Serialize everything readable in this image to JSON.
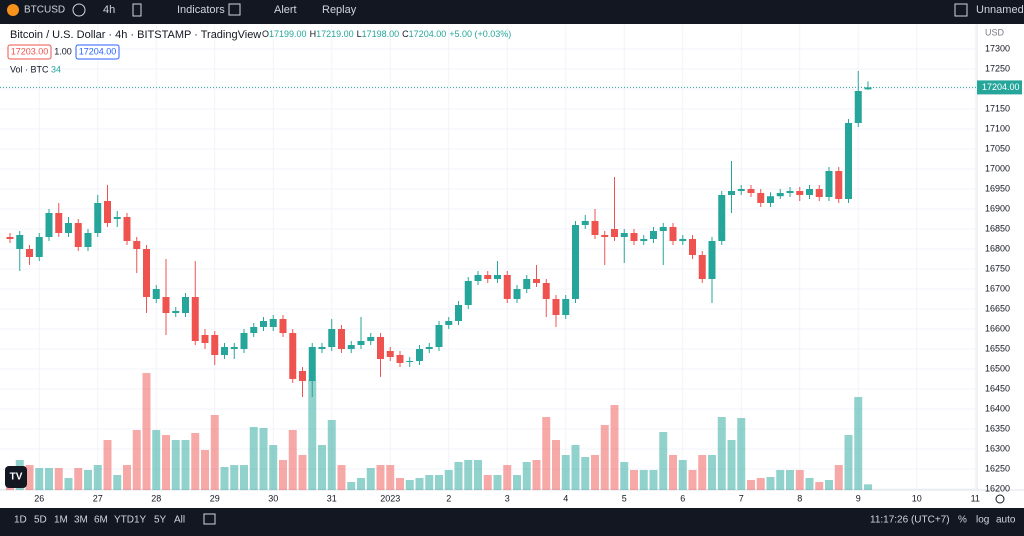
{
  "toolbar": {
    "symbol": "BTCUSD",
    "interval": "4h",
    "indicators": "Indicators",
    "alert": "Alert",
    "replay": "Replay",
    "layout": "Unnamed"
  },
  "legend": {
    "title": "Bitcoin / U.S. Dollar · 4h · BITSTAMP · TradingView",
    "o_label": "O",
    "o": "17199.00",
    "h_label": "H",
    "h": "17219.00",
    "l_label": "L",
    "l": "17198.00",
    "c_label": "C",
    "c": "17204.00",
    "change": "+5.00 (+0.03%)",
    "bid": "17203.00",
    "spread": "1.00",
    "ask": "17204.00",
    "vol_label": "Vol · BTC"
  },
  "chart_data": {
    "type": "candlestick",
    "currency": "USD",
    "last_price_label": "17204.00",
    "up_color": "#26a69a",
    "down_color": "#ef5350",
    "ylim": [
      16172.5,
      17360
    ],
    "yticks": [
      16200,
      16250,
      16300,
      16350,
      16400,
      16450,
      16500,
      16550,
      16600,
      16650,
      16700,
      16750,
      16800,
      16850,
      16900,
      16950,
      17000,
      17050,
      17100,
      17150,
      17200,
      17250,
      17300
    ],
    "x_labels": [
      "26",
      "27",
      "28",
      "29",
      "30",
      "31",
      "2023",
      "2",
      "3",
      "4",
      "5",
      "6",
      "7",
      "8",
      "9",
      "10",
      "11"
    ],
    "open": [
      16830,
      16800,
      16800,
      16780,
      16830,
      16890,
      16840,
      16865,
      16805,
      16840,
      16920,
      16875,
      16880,
      16820,
      16800,
      16675,
      16680,
      16640,
      16640,
      16680,
      16585,
      16585,
      16535,
      16550,
      16550,
      16590,
      16605,
      16605,
      16625,
      16590,
      16495,
      16470,
      16550,
      16555,
      16600,
      16550,
      16560,
      16570,
      16580,
      16545,
      16535,
      16520,
      16520,
      16550,
      16555,
      16610,
      16620,
      16660,
      16720,
      16735,
      16725,
      16735,
      16675,
      16700,
      16725,
      16715,
      16675,
      16635,
      16675,
      16860,
      16870,
      16835,
      16850,
      16830,
      16840,
      16820,
      16825,
      16845,
      16855,
      16820,
      16825,
      16785,
      16725,
      16820,
      16935,
      16945,
      16950,
      16940,
      16915,
      16932,
      16940,
      16945,
      16935,
      16950,
      16930,
      16995,
      16925,
      17115,
      17199
    ],
    "close": [
      16825,
      16835,
      16780,
      16830,
      16890,
      16840,
      16865,
      16805,
      16840,
      16915,
      16865,
      16880,
      16820,
      16800,
      16680,
      16700,
      16640,
      16645,
      16680,
      16570,
      16565,
      16535,
      16555,
      16555,
      16590,
      16605,
      16620,
      16625,
      16590,
      16475,
      16470,
      16555,
      16555,
      16600,
      16550,
      16560,
      16570,
      16580,
      16525,
      16530,
      16515,
      16520,
      16550,
      16555,
      16610,
      16620,
      16660,
      16720,
      16735,
      16725,
      16735,
      16675,
      16700,
      16725,
      16715,
      16675,
      16635,
      16675,
      16860,
      16870,
      16835,
      16830,
      16830,
      16840,
      16820,
      16825,
      16845,
      16855,
      16820,
      16825,
      16785,
      16725,
      16820,
      16935,
      16945,
      16950,
      16940,
      16915,
      16932,
      16940,
      16945,
      16935,
      16950,
      16930,
      16995,
      16925,
      17115,
      17195,
      17204
    ],
    "high": [
      16840,
      16845,
      16810,
      16840,
      16900,
      16915,
      16880,
      16875,
      16850,
      16935,
      16960,
      16895,
      16890,
      16830,
      16810,
      16710,
      16775,
      16655,
      16690,
      16770,
      16600,
      16595,
      16565,
      16565,
      16600,
      16615,
      16630,
      16635,
      16635,
      16600,
      16505,
      16565,
      16565,
      16625,
      16610,
      16570,
      16630,
      16590,
      16590,
      16555,
      16545,
      16530,
      16560,
      16565,
      16620,
      16630,
      16670,
      16730,
      16745,
      16745,
      16770,
      16745,
      16710,
      16735,
      16760,
      16725,
      16685,
      16685,
      16870,
      16885,
      16900,
      16845,
      16980,
      16850,
      16850,
      16835,
      16855,
      16865,
      16865,
      16835,
      16835,
      16795,
      16830,
      16945,
      17020,
      16960,
      16960,
      16950,
      16942,
      16950,
      16955,
      16955,
      16960,
      16960,
      17005,
      17005,
      17125,
      17245,
      17219
    ],
    "low": [
      16815,
      16745,
      16760,
      16770,
      16820,
      16830,
      16830,
      16795,
      16795,
      16830,
      16855,
      16855,
      16810,
      16740,
      16640,
      16665,
      16585,
      16630,
      16630,
      16560,
      16550,
      16510,
      16525,
      16525,
      16540,
      16580,
      16595,
      16595,
      16580,
      16465,
      16430,
      16430,
      16540,
      16545,
      16540,
      16540,
      16550,
      16560,
      16480,
      16520,
      16505,
      16505,
      16510,
      16540,
      16545,
      16600,
      16610,
      16650,
      16710,
      16715,
      16715,
      16665,
      16665,
      16690,
      16705,
      16630,
      16605,
      16625,
      16665,
      16850,
      16825,
      16760,
      16820,
      16765,
      16810,
      16810,
      16815,
      16760,
      16810,
      16810,
      16775,
      16715,
      16665,
      16810,
      16890,
      16935,
      16930,
      16905,
      16905,
      16925,
      16930,
      16920,
      16925,
      16920,
      16920,
      16915,
      16915,
      17105,
      17198
    ],
    "volume": [
      42,
      180,
      150,
      132,
      132,
      132,
      72,
      132,
      120,
      150,
      300,
      90,
      150,
      360,
      702,
      360,
      330,
      300,
      300,
      342,
      240,
      450,
      138,
      150,
      150,
      378,
      372,
      270,
      180,
      360,
      210,
      660,
      270,
      420,
      150,
      48,
      72,
      132,
      150,
      150,
      72,
      60,
      72,
      90,
      90,
      120,
      168,
      180,
      180,
      90,
      90,
      150,
      90,
      168,
      180,
      438,
      300,
      210,
      270,
      198,
      210,
      390,
      510,
      168,
      120,
      120,
      120,
      348,
      210,
      180,
      120,
      210,
      210,
      438,
      300,
      432,
      60,
      72,
      78,
      120,
      120,
      120,
      72,
      48,
      60,
      150,
      330,
      558,
      34
    ]
  },
  "bottombar": {
    "ranges": [
      "1D",
      "5D",
      "1M",
      "3M",
      "6M",
      "YTD",
      "1Y",
      "5Y",
      "All"
    ],
    "clock": "11:17:26 (UTC+7)",
    "percent": "%",
    "log": "log",
    "auto": "auto"
  }
}
